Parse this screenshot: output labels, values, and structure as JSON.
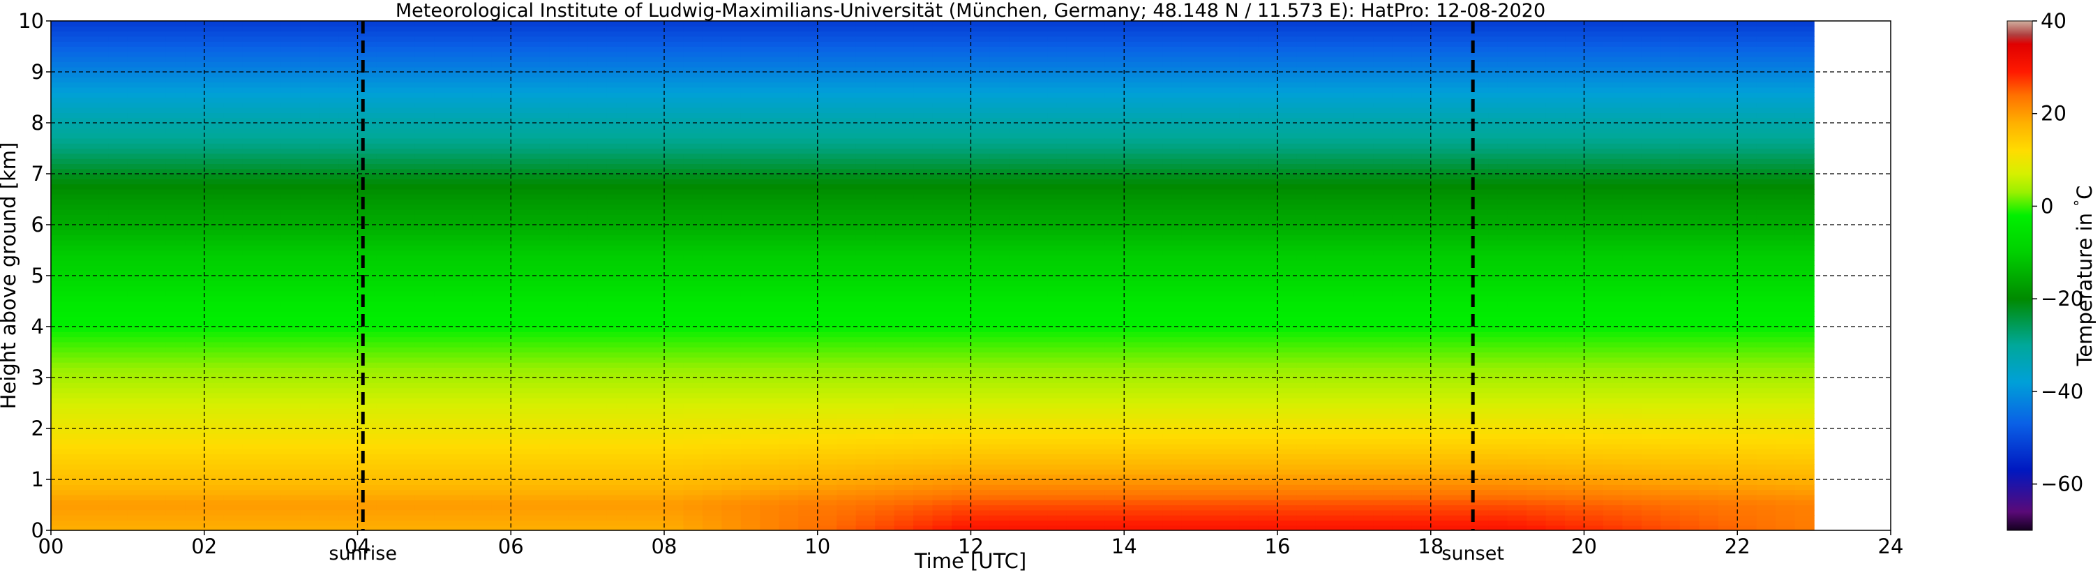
{
  "chart_data": {
    "type": "heatmap",
    "title": "Meteorological Institute of Ludwig-Maximilians-Universität (München, Germany; 48.148 N / 11.573 E):    HatPro: 12-08-2020",
    "xlabel": "Time [UTC]",
    "ylabel": "Height above ground [km]",
    "xlim": [
      0,
      24
    ],
    "ylim": [
      0,
      10
    ],
    "x_ticks": [
      0,
      2,
      4,
      6,
      8,
      10,
      12,
      14,
      16,
      18,
      20,
      22,
      24
    ],
    "x_tick_labels": [
      "00",
      "02",
      "04",
      "06",
      "08",
      "10",
      "12",
      "14",
      "16",
      "18",
      "20",
      "22",
      "24"
    ],
    "y_ticks": [
      0,
      1,
      2,
      3,
      4,
      5,
      6,
      7,
      8,
      9,
      10
    ],
    "y_tick_labels": [
      "0",
      "1",
      "2",
      "3",
      "4",
      "5",
      "6",
      "7",
      "8",
      "9",
      "10"
    ],
    "grid": true,
    "data_x_range": [
      0,
      23
    ],
    "data_y_range": [
      0,
      10
    ],
    "colorbar": {
      "label": "Temperature in $^\\circ$C",
      "range": [
        -70,
        40
      ],
      "ticks": [
        40,
        20,
        0,
        -20,
        -40,
        -60
      ],
      "tick_labels": [
        "40",
        "20",
        "0",
        "−20",
        "−40",
        "−60"
      ],
      "colors": [
        {
          "value": -70,
          "color": "#14001f"
        },
        {
          "value": -66,
          "color": "#5a0a78"
        },
        {
          "value": -57,
          "color": "#0018c0"
        },
        {
          "value": -47,
          "color": "#0a60e6"
        },
        {
          "value": -38,
          "color": "#00a0d8"
        },
        {
          "value": -30,
          "color": "#00a89a"
        },
        {
          "value": -20,
          "color": "#008a00"
        },
        {
          "value": -10,
          "color": "#00d000"
        },
        {
          "value": -2,
          "color": "#00f000"
        },
        {
          "value": 3,
          "color": "#9af000"
        },
        {
          "value": 7,
          "color": "#d6f000"
        },
        {
          "value": 12,
          "color": "#ffdc00"
        },
        {
          "value": 18,
          "color": "#ffb000"
        },
        {
          "value": 24,
          "color": "#ff7000"
        },
        {
          "value": 29,
          "color": "#ff1a00"
        },
        {
          "value": 35,
          "color": "#e00000"
        },
        {
          "value": 37,
          "color": "#b04040"
        },
        {
          "value": 40,
          "color": "#d0b0a0"
        }
      ]
    },
    "profile": {
      "heights": [
        0,
        0.5,
        1,
        1.5,
        2,
        2.5,
        3,
        3.5,
        4,
        4.5,
        5,
        5.5,
        6,
        6.5,
        7,
        7.5,
        8,
        8.5,
        9,
        9.5,
        10
      ],
      "temps_night": [
        18,
        20,
        16,
        13,
        10,
        7,
        4,
        1,
        -2,
        -4,
        -8,
        -11,
        -15,
        -18,
        -22,
        -28,
        -32,
        -37,
        -42,
        -47,
        -52
      ],
      "temps_day": [
        30,
        26,
        20,
        15,
        11,
        7,
        4,
        1,
        -2,
        -4,
        -8,
        -11,
        -15,
        -18,
        -22,
        -28,
        -32,
        -37,
        -42,
        -47,
        -52
      ]
    },
    "vlines": [
      {
        "x": 4.07,
        "label": "sunrise"
      },
      {
        "x": 18.55,
        "label": "sunset"
      }
    ]
  }
}
